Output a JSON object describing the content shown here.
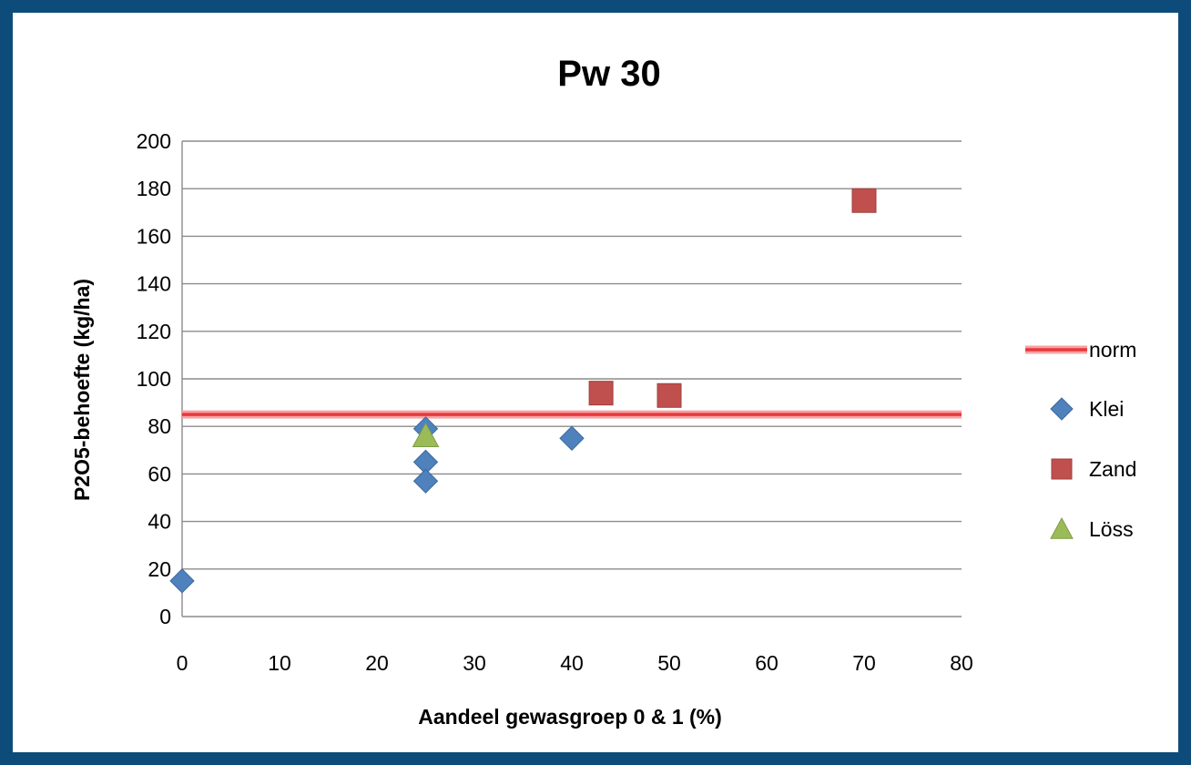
{
  "chart_data": {
    "type": "scatter",
    "title": "Pw 30",
    "xlabel": "Aandeel gewasgroep 0 & 1 (%)",
    "ylabel": "P2O5-behoefte (kg/ha)",
    "xlim": [
      0,
      80
    ],
    "ylim": [
      0,
      200
    ],
    "xticks": [
      0,
      10,
      20,
      30,
      40,
      50,
      60,
      70,
      80
    ],
    "yticks": [
      0,
      20,
      40,
      60,
      80,
      100,
      120,
      140,
      160,
      180,
      200
    ],
    "grid": "horizontal",
    "legend_position": "right",
    "reference_line": {
      "name": "norm",
      "y": 85,
      "color": "#e8383d"
    },
    "series": [
      {
        "name": "Klei",
        "marker": "diamond",
        "color": "#4f81bd",
        "points": [
          [
            0,
            15
          ],
          [
            25,
            79
          ],
          [
            25,
            65
          ],
          [
            25,
            57
          ],
          [
            40,
            75
          ]
        ]
      },
      {
        "name": "Zand",
        "marker": "square",
        "color": "#c0504d",
        "points": [
          [
            43,
            94
          ],
          [
            50,
            93
          ],
          [
            70,
            175
          ]
        ]
      },
      {
        "name": "Löss",
        "marker": "triangle",
        "color": "#9bbb59",
        "points": [
          [
            25,
            76
          ]
        ]
      }
    ]
  }
}
